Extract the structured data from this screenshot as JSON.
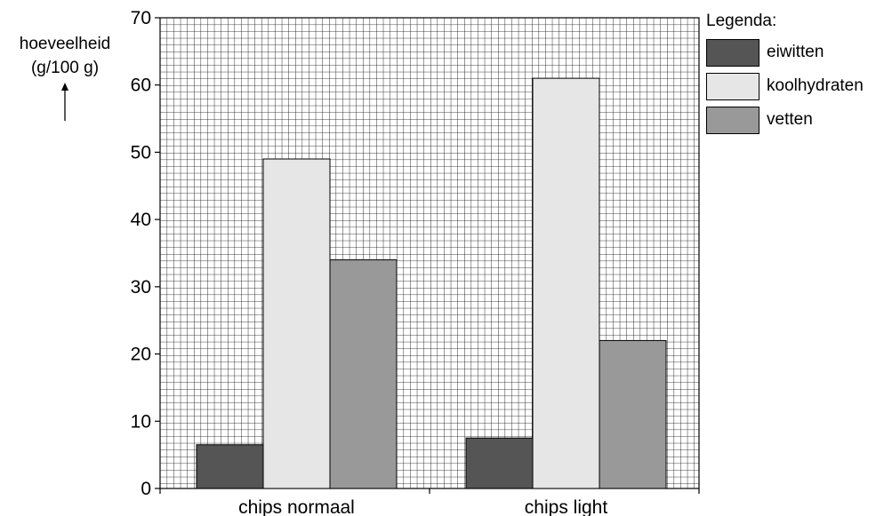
{
  "chart_data": {
    "type": "bar",
    "ylabel_line1": "hoeveelheid",
    "ylabel_line2": "(g/100 g)",
    "categories": [
      "chips normaal",
      "chips light"
    ],
    "series": [
      {
        "name": "eiwitten",
        "values": [
          6.5,
          7.5
        ],
        "color": "#555555"
      },
      {
        "name": "koolhydraten",
        "values": [
          49,
          61
        ],
        "color": "#e6e6e6"
      },
      {
        "name": "vetten",
        "values": [
          34,
          22
        ],
        "color": "#999999"
      }
    ],
    "ylim": [
      0,
      70
    ],
    "yticks": [
      "0",
      "10",
      "20",
      "30",
      "40",
      "50",
      "60",
      "70"
    ],
    "grid": true,
    "legend_title": "Legenda:",
    "legend_placement": "top-right"
  }
}
